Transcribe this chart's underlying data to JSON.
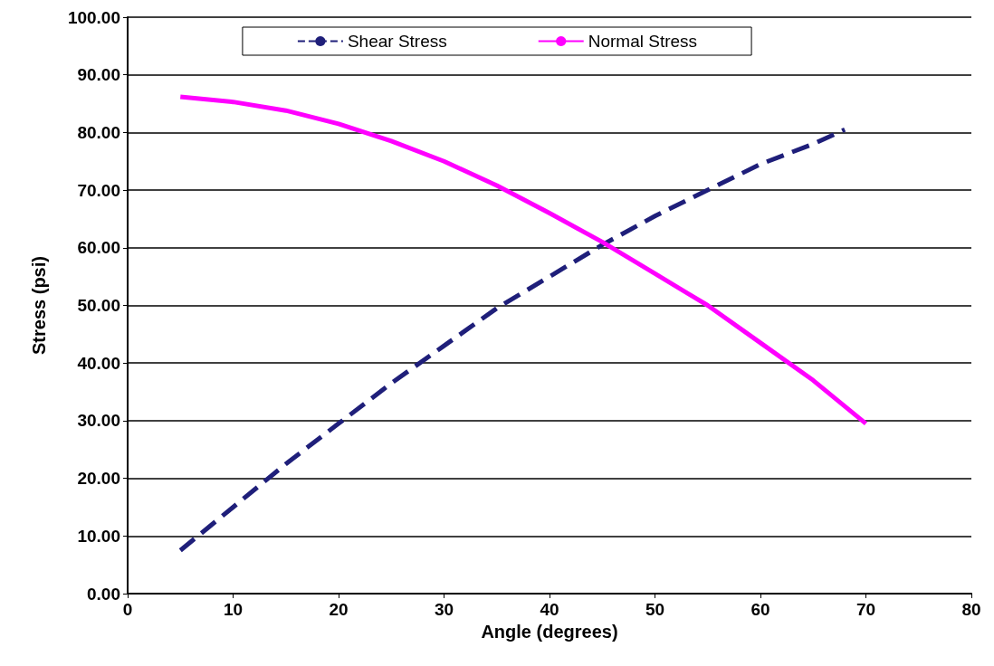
{
  "chart_data": {
    "type": "line",
    "xlabel": "Angle (degrees)",
    "ylabel": "Stress (psi)",
    "xlim": [
      0,
      80
    ],
    "xticks": [
      0,
      10,
      20,
      30,
      40,
      50,
      60,
      70,
      80
    ],
    "ylim": [
      0,
      100
    ],
    "yticks": [
      {
        "value": 0,
        "label": "0.00"
      },
      {
        "value": 10,
        "label": "10.00"
      },
      {
        "value": 20,
        "label": "20.00"
      },
      {
        "value": 30,
        "label": "30.00"
      },
      {
        "value": 40,
        "label": "40.00"
      },
      {
        "value": 50,
        "label": "50.00"
      },
      {
        "value": 60,
        "label": "60.00"
      },
      {
        "value": 70,
        "label": "70.00"
      },
      {
        "value": 80,
        "label": "80.00"
      },
      {
        "value": 90,
        "label": "90.00"
      },
      {
        "value": 100,
        "label": "100.00"
      }
    ],
    "grid": "y",
    "legend": "top",
    "marker": "none",
    "series": [
      {
        "name": "Shear Stress",
        "color": "#1f1f7a",
        "line_style": "dashed",
        "x": [
          5,
          10,
          15,
          20,
          25,
          30,
          35,
          40,
          45,
          50,
          55,
          60,
          65,
          68
        ],
        "values": [
          7.5,
          15,
          22.5,
          29.5,
          36.5,
          43,
          49.5,
          55,
          60.5,
          65.5,
          70,
          74.5,
          78,
          80.5
        ]
      },
      {
        "name": "Normal Stress",
        "color": "#ff00ff",
        "line_style": "solid",
        "x": [
          5,
          10,
          15,
          20,
          25,
          30,
          35,
          40,
          45,
          50,
          55,
          60,
          65,
          70
        ],
        "values": [
          86.2,
          85.3,
          83.8,
          81.5,
          78.5,
          75,
          70.8,
          66,
          61,
          55.5,
          50,
          43.5,
          37,
          29.5
        ]
      }
    ]
  }
}
